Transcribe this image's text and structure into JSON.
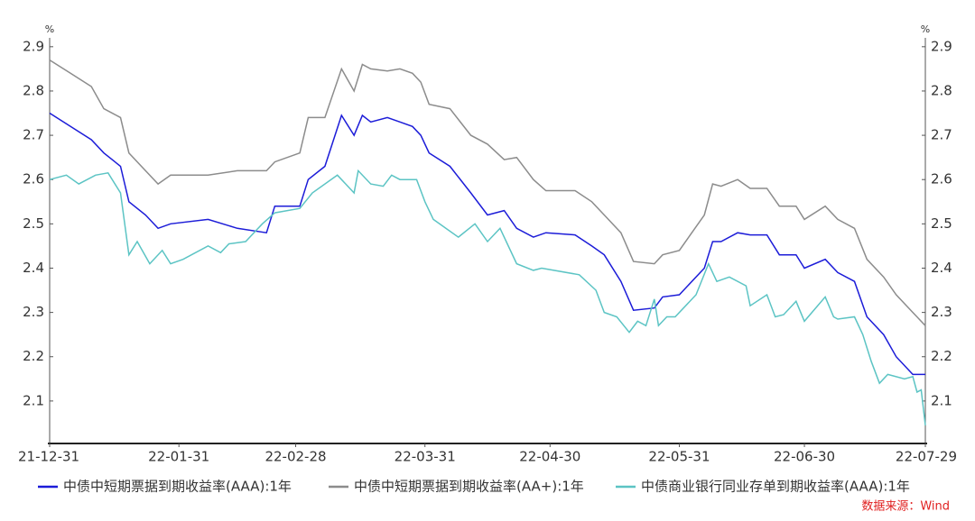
{
  "chart_data": {
    "type": "line",
    "y_unit": "%",
    "y2_unit": "%",
    "xlim": [
      "21-12-31",
      "22-07-29"
    ],
    "xticks": [
      "21-12-31",
      "22-01-31",
      "22-02-28",
      "22-03-31",
      "22-04-30",
      "22-05-31",
      "22-06-30",
      "22-07-29"
    ],
    "ylim": [
      2.0,
      2.92
    ],
    "yticks": [
      2.1,
      2.2,
      2.3,
      2.4,
      2.5,
      2.6,
      2.7,
      2.8,
      2.9
    ],
    "y2lim": [
      2.0,
      2.92
    ],
    "y2ticks": [
      2.1,
      2.2,
      2.3,
      2.4,
      2.5,
      2.6,
      2.7,
      2.8,
      2.9
    ],
    "source": "数据来源：Wind",
    "series": [
      {
        "name": "中债中短期票据到期收益率(AAA):1年",
        "color": "#1c1cd8",
        "x": [
          "21-12-31",
          "22-01-05",
          "22-01-10",
          "22-01-13",
          "22-01-17",
          "22-01-19",
          "22-01-23",
          "22-01-26",
          "22-01-29",
          "22-02-07",
          "22-02-14",
          "22-02-21",
          "22-02-23",
          "22-03-01",
          "22-03-03",
          "22-03-07",
          "22-03-11",
          "22-03-14",
          "22-03-16",
          "22-03-18",
          "22-03-22",
          "22-03-25",
          "22-03-28",
          "22-03-30",
          "22-04-01",
          "22-04-06",
          "22-04-11",
          "22-04-15",
          "22-04-19",
          "22-04-22",
          "22-04-26",
          "22-04-29",
          "22-05-06",
          "22-05-10",
          "22-05-13",
          "22-05-17",
          "22-05-20",
          "22-05-25",
          "22-05-27",
          "22-05-31",
          "22-06-06",
          "22-06-08",
          "22-06-10",
          "22-06-14",
          "22-06-17",
          "22-06-21",
          "22-06-24",
          "22-06-28",
          "22-06-30",
          "22-07-05",
          "22-07-08",
          "22-07-12",
          "22-07-15",
          "22-07-19",
          "22-07-22",
          "22-07-26",
          "22-07-29"
        ],
        "values": [
          2.75,
          2.72,
          2.69,
          2.66,
          2.63,
          2.55,
          2.52,
          2.49,
          2.5,
          2.51,
          2.49,
          2.48,
          2.54,
          2.54,
          2.6,
          2.63,
          2.745,
          2.7,
          2.745,
          2.73,
          2.74,
          2.73,
          2.72,
          2.7,
          2.66,
          2.63,
          2.57,
          2.52,
          2.53,
          2.49,
          2.47,
          2.48,
          2.475,
          2.45,
          2.43,
          2.37,
          2.305,
          2.31,
          2.335,
          2.34,
          2.4,
          2.46,
          2.46,
          2.48,
          2.475,
          2.475,
          2.43,
          2.43,
          2.4,
          2.42,
          2.39,
          2.37,
          2.29,
          2.25,
          2.2,
          2.16,
          2.16
        ]
      },
      {
        "name": "中债中短期票据到期收益率(AA+):1年",
        "color": "#8c8c8c",
        "x": [
          "21-12-31",
          "22-01-05",
          "22-01-10",
          "22-01-13",
          "22-01-17",
          "22-01-19",
          "22-01-23",
          "22-01-26",
          "22-01-29",
          "22-02-07",
          "22-02-14",
          "22-02-21",
          "22-02-23",
          "22-03-01",
          "22-03-03",
          "22-03-07",
          "22-03-11",
          "22-03-14",
          "22-03-16",
          "22-03-18",
          "22-03-22",
          "22-03-25",
          "22-03-28",
          "22-03-30",
          "22-04-01",
          "22-04-06",
          "22-04-11",
          "22-04-15",
          "22-04-19",
          "22-04-22",
          "22-04-26",
          "22-04-29",
          "22-05-06",
          "22-05-10",
          "22-05-13",
          "22-05-17",
          "22-05-20",
          "22-05-25",
          "22-05-27",
          "22-05-31",
          "22-06-06",
          "22-06-08",
          "22-06-10",
          "22-06-14",
          "22-06-17",
          "22-06-21",
          "22-06-24",
          "22-06-28",
          "22-06-30",
          "22-07-05",
          "22-07-08",
          "22-07-12",
          "22-07-15",
          "22-07-19",
          "22-07-22",
          "22-07-26",
          "22-07-29"
        ],
        "values": [
          2.87,
          2.84,
          2.81,
          2.76,
          2.74,
          2.66,
          2.62,
          2.59,
          2.61,
          2.61,
          2.62,
          2.62,
          2.64,
          2.66,
          2.74,
          2.74,
          2.85,
          2.8,
          2.86,
          2.85,
          2.845,
          2.85,
          2.84,
          2.82,
          2.77,
          2.76,
          2.7,
          2.68,
          2.645,
          2.65,
          2.6,
          2.575,
          2.575,
          2.55,
          2.52,
          2.48,
          2.415,
          2.41,
          2.43,
          2.44,
          2.52,
          2.59,
          2.585,
          2.6,
          2.58,
          2.58,
          2.54,
          2.54,
          2.51,
          2.54,
          2.51,
          2.49,
          2.42,
          2.38,
          2.34,
          2.3,
          2.27
        ]
      },
      {
        "name": "中债商业银行同业存单到期收益率(AAA):1年",
        "color": "#5cc4c4",
        "x": [
          "21-12-31",
          "22-01-04",
          "22-01-07",
          "22-01-11",
          "22-01-14",
          "22-01-17",
          "22-01-19",
          "22-01-21",
          "22-01-24",
          "22-01-27",
          "22-01-29",
          "22-02-01",
          "22-02-07",
          "22-02-10",
          "22-02-12",
          "22-02-16",
          "22-02-20",
          "22-02-23",
          "22-03-01",
          "22-03-04",
          "22-03-10",
          "22-03-14",
          "22-03-15",
          "22-03-18",
          "22-03-21",
          "22-03-23",
          "22-03-25",
          "22-03-29",
          "22-03-31",
          "22-04-02",
          "22-04-08",
          "22-04-12",
          "22-04-15",
          "22-04-18",
          "22-04-22",
          "22-04-26",
          "22-04-28",
          "22-05-07",
          "22-05-11",
          "22-05-13",
          "22-05-16",
          "22-05-19",
          "22-05-21",
          "22-05-23",
          "22-05-25",
          "22-05-26",
          "22-05-28",
          "22-05-30",
          "22-06-04",
          "22-06-07",
          "22-06-09",
          "22-06-12",
          "22-06-16",
          "22-06-17",
          "22-06-21",
          "22-06-23",
          "22-06-25",
          "22-06-28",
          "22-06-30",
          "22-07-05",
          "22-07-07",
          "22-07-08",
          "22-07-12",
          "22-07-14",
          "22-07-16",
          "22-07-18",
          "22-07-20",
          "22-07-24",
          "22-07-26",
          "22-07-27",
          "22-07-28",
          "22-07-29"
        ],
        "values": [
          2.6,
          2.61,
          2.59,
          2.61,
          2.615,
          2.57,
          2.43,
          2.46,
          2.41,
          2.44,
          2.41,
          2.42,
          2.45,
          2.435,
          2.455,
          2.46,
          2.5,
          2.525,
          2.535,
          2.57,
          2.61,
          2.57,
          2.62,
          2.59,
          2.585,
          2.61,
          2.6,
          2.6,
          2.55,
          2.51,
          2.47,
          2.5,
          2.46,
          2.49,
          2.41,
          2.395,
          2.4,
          2.385,
          2.35,
          2.3,
          2.29,
          2.255,
          2.28,
          2.27,
          2.33,
          2.27,
          2.29,
          2.29,
          2.34,
          2.41,
          2.37,
          2.38,
          2.36,
          2.315,
          2.34,
          2.29,
          2.295,
          2.325,
          2.28,
          2.335,
          2.29,
          2.285,
          2.29,
          2.25,
          2.19,
          2.14,
          2.16,
          2.15,
          2.155,
          2.12,
          2.125,
          2.045
        ]
      }
    ]
  }
}
